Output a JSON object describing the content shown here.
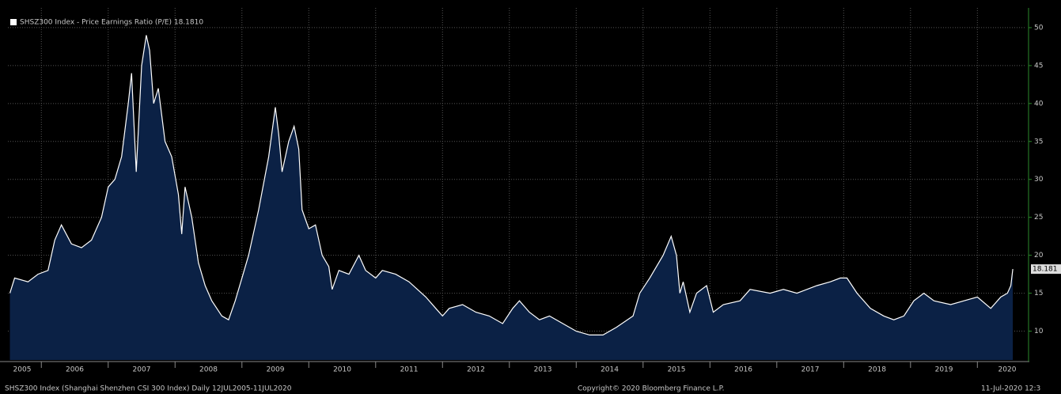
{
  "chart_data": {
    "type": "area",
    "title": "SHSZ300 Index - Price Earnings Ratio (P/E) 18.1810",
    "footer_left": "SHSZ300 Index (Shanghai Shenzhen CSI 300 Index)  Daily 12JUL2005-11JUL2020",
    "footer_center": "Copyright© 2020 Bloomberg Finance L.P.",
    "footer_right": "11-Jul-2020 12:3",
    "last_value": 18.181,
    "color": "#ffffff",
    "fill": "#0b2145",
    "grid": true,
    "xlim": [
      2005.5,
      2020.73
    ],
    "xticks": [
      2005,
      2006,
      2007,
      2008,
      2009,
      2010,
      2011,
      2012,
      2013,
      2014,
      2015,
      2016,
      2017,
      2018,
      2019,
      2020
    ],
    "ylim": [
      6.2,
      52.6
    ],
    "yticks": [
      10,
      15,
      20,
      25,
      30,
      35,
      40,
      45,
      50
    ],
    "x": [
      2005.53,
      2005.6,
      2005.8,
      2005.95,
      2006.1,
      2006.2,
      2006.3,
      2006.45,
      2006.6,
      2006.75,
      2006.9,
      2007.0,
      2007.1,
      2007.2,
      2007.3,
      2007.35,
      2007.42,
      2007.5,
      2007.57,
      2007.62,
      2007.68,
      2007.75,
      2007.85,
      2007.95,
      2008.05,
      2008.1,
      2008.15,
      2008.25,
      2008.35,
      2008.45,
      2008.55,
      2008.7,
      2008.8,
      2008.9,
      2009.0,
      2009.1,
      2009.25,
      2009.4,
      2009.5,
      2009.55,
      2009.6,
      2009.7,
      2009.78,
      2009.85,
      2009.9,
      2010.0,
      2010.1,
      2010.2,
      2010.3,
      2010.35,
      2010.45,
      2010.6,
      2010.75,
      2010.85,
      2011.0,
      2011.1,
      2011.3,
      2011.5,
      2011.75,
      2011.9,
      2012.0,
      2012.1,
      2012.3,
      2012.5,
      2012.7,
      2012.9,
      2013.05,
      2013.15,
      2013.3,
      2013.45,
      2013.6,
      2013.8,
      2014.0,
      2014.2,
      2014.4,
      2014.6,
      2014.85,
      2014.95,
      2015.1,
      2015.3,
      2015.42,
      2015.5,
      2015.55,
      2015.6,
      2015.7,
      2015.8,
      2015.95,
      2016.05,
      2016.2,
      2016.45,
      2016.6,
      2016.9,
      2017.1,
      2017.3,
      2017.6,
      2017.8,
      2017.95,
      2018.05,
      2018.2,
      2018.4,
      2018.6,
      2018.75,
      2018.9,
      2019.05,
      2019.2,
      2019.35,
      2019.6,
      2019.8,
      2020.0,
      2020.2,
      2020.35,
      2020.45,
      2020.5,
      2020.53
    ],
    "values": [
      15,
      17,
      16.5,
      17.5,
      18,
      22,
      24,
      21.5,
      21,
      22,
      25,
      29,
      30,
      33,
      40,
      44,
      31,
      45,
      49,
      47,
      40,
      42,
      35,
      33,
      28,
      22.8,
      29,
      25,
      19,
      16,
      14,
      12,
      11.5,
      14,
      17,
      20,
      26,
      33,
      39.5,
      36,
      31,
      35,
      37,
      34,
      26,
      23.5,
      24,
      20,
      18.5,
      15.5,
      18,
      17.5,
      20,
      18,
      17,
      18,
      17.5,
      16.5,
      14.5,
      13,
      12,
      13,
      13.5,
      12.5,
      12,
      11,
      13,
      14,
      12.5,
      11.5,
      12,
      11,
      10,
      9.5,
      9.5,
      10.5,
      12,
      15,
      17,
      20,
      22.5,
      20,
      15,
      16.5,
      12.5,
      15,
      16,
      12.5,
      13.5,
      14,
      15.5,
      15,
      15.5,
      15,
      16,
      16.5,
      17,
      17,
      15,
      13,
      12,
      11.5,
      12,
      14,
      15,
      14,
      13.5,
      14,
      14.5,
      13,
      14.5,
      15,
      16,
      18.181
    ]
  }
}
